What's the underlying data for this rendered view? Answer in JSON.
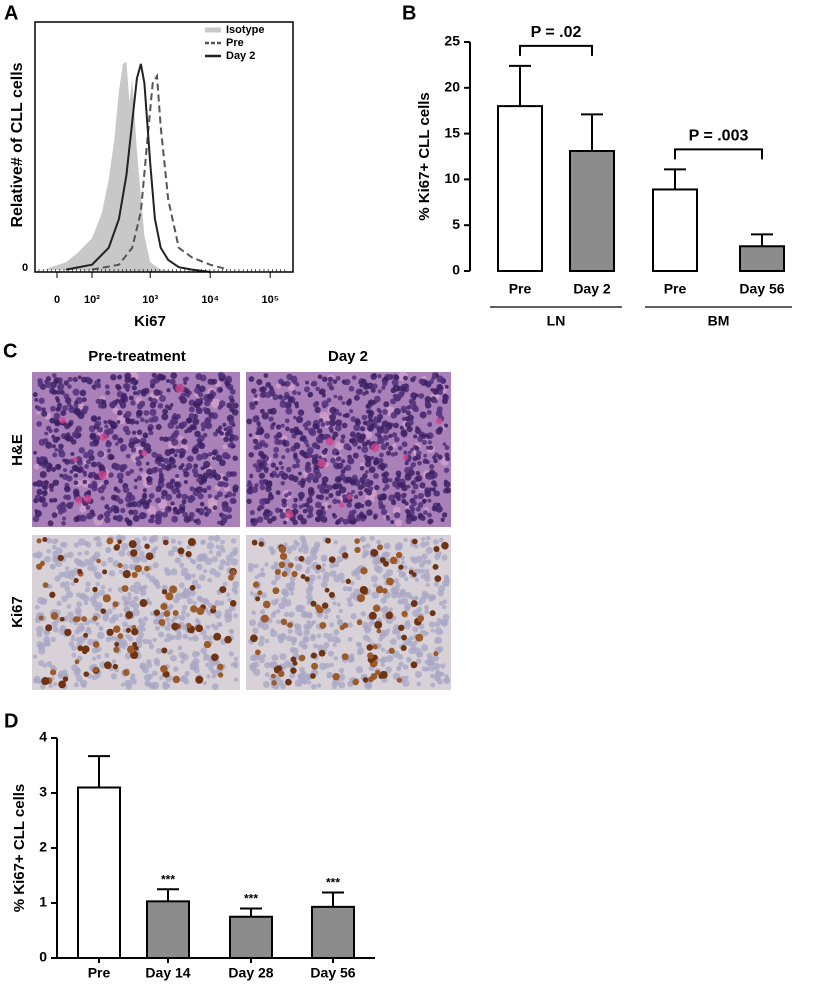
{
  "chart_data": [
    {
      "type": "histogram-overlay",
      "panel": "A",
      "xlabel": "Ki67",
      "ylabel": "Relative# of CLL cells",
      "xscale": "logicle",
      "xlim": [
        -35,
        250000
      ],
      "ylim": [
        0,
        100
      ],
      "xticks": [
        {
          "value": 0,
          "label": "0"
        },
        {
          "value": 100,
          "label": "10²"
        },
        {
          "value": 1000,
          "label": "10³"
        },
        {
          "value": 10000,
          "label": "10⁴"
        },
        {
          "value": 100000,
          "label": "10⁵"
        }
      ],
      "yticks": [
        0
      ],
      "legend": "top-right",
      "series": [
        {
          "name": "Isotype",
          "color": "#c8c8c8",
          "line_style": "filled",
          "x": [
            -30,
            20,
            50,
            100,
            150,
            200,
            250,
            300,
            350,
            400,
            450,
            500,
            600,
            800,
            1000,
            1500,
            3000
          ],
          "values": [
            1,
            4,
            8,
            14,
            24,
            38,
            55,
            75,
            86,
            87,
            70,
            80,
            50,
            15,
            4,
            1,
            0
          ]
        },
        {
          "name": "Pre",
          "color": "#555555",
          "line_style": "dashed",
          "x": [
            100,
            300,
            500,
            700,
            900,
            1100,
            1300,
            1500,
            2000,
            3000,
            5000,
            10000,
            20000
          ],
          "values": [
            1,
            3,
            10,
            25,
            55,
            78,
            81,
            60,
            30,
            10,
            6,
            3,
            1
          ]
        },
        {
          "name": "Day 2",
          "color": "#222222",
          "line_style": "solid",
          "x": [
            20,
            100,
            200,
            300,
            400,
            500,
            600,
            700,
            800,
            1000,
            1200,
            1500,
            2000,
            3000,
            5000,
            10000
          ],
          "values": [
            1,
            3,
            10,
            22,
            40,
            62,
            80,
            86,
            78,
            45,
            22,
            10,
            5,
            2,
            1,
            0
          ]
        }
      ]
    },
    {
      "type": "bar",
      "panel": "B",
      "ylabel": "% Ki67+ CLL cells",
      "ylim": [
        0,
        25
      ],
      "yticks": [
        0,
        5,
        10,
        15,
        20,
        25
      ],
      "groups": [
        {
          "name": "LN",
          "categories": [
            "Pre",
            "Day 2"
          ],
          "values": [
            18,
            13.1
          ],
          "errors": [
            4.4,
            4.0
          ],
          "colors": [
            "#ffffff",
            "#8c8c8c"
          ],
          "annotation": "P = .02"
        },
        {
          "name": "BM",
          "categories": [
            "Pre",
            "Day 56"
          ],
          "values": [
            8.9,
            2.7
          ],
          "errors": [
            2.2,
            1.3
          ],
          "colors": [
            "#ffffff",
            "#8c8c8c"
          ],
          "annotation": "P = .003"
        }
      ]
    },
    {
      "type": "bar",
      "panel": "D",
      "ylabel": "% Ki67+ CLL cells",
      "ylim": [
        0,
        4
      ],
      "yticks": [
        0,
        1,
        2,
        3,
        4
      ],
      "groups": [
        {
          "categories": [
            "Pre",
            "Day 14",
            "Day 28",
            "Day 56"
          ],
          "values": [
            3.1,
            1.03,
            0.75,
            0.93
          ],
          "errors": [
            0.57,
            0.22,
            0.15,
            0.26
          ],
          "colors": [
            "#ffffff",
            "#8c8c8c",
            "#8c8c8c",
            "#8c8c8c"
          ],
          "annotations": [
            null,
            "***",
            "***",
            "***"
          ]
        }
      ]
    }
  ],
  "panel_c": {
    "label": "C",
    "columns": [
      "Pre-treatment",
      "Day 2"
    ],
    "rows": [
      "H&E",
      "Ki67"
    ]
  }
}
